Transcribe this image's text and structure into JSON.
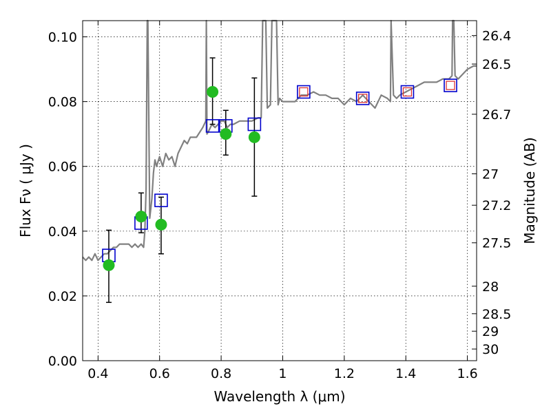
{
  "chart_data": {
    "type": "scatter",
    "xlabel": "Wavelength  λ (μm)",
    "ylabel": "Flux  Fν  ( μJy )",
    "ylabel_right": "Magnitude (AB)",
    "xlim": [
      0.35,
      1.63
    ],
    "ylim": [
      0.0,
      0.105
    ],
    "grid": true,
    "x_ticks": [
      0.4,
      0.6,
      0.8,
      1.0,
      1.2,
      1.4,
      1.6
    ],
    "x_tick_labels": [
      "0.4",
      "0.6",
      "0.8",
      "1",
      "1.2",
      "1.4",
      "1.6"
    ],
    "y_ticks": [
      0.0,
      0.02,
      0.04,
      0.06,
      0.08,
      0.1
    ],
    "y_tick_labels": [
      "0.00",
      "0.02",
      "0.04",
      "0.06",
      "0.08",
      "0.10"
    ],
    "right_ticks": [
      {
        "label": "26.4",
        "flux": 0.1004
      },
      {
        "label": "26.5",
        "flux": 0.0916
      },
      {
        "label": "26.7",
        "flux": 0.0761
      },
      {
        "label": "27",
        "flux": 0.0577
      },
      {
        "label": "27.2",
        "flux": 0.048
      },
      {
        "label": "27.5",
        "flux": 0.0364
      },
      {
        "label": "28",
        "flux": 0.023
      },
      {
        "label": "28.5",
        "flux": 0.0145
      },
      {
        "label": "29",
        "flux": 0.0091
      },
      {
        "label": "30",
        "flux": 0.0036
      }
    ],
    "colors": {
      "spectrum": "#808080",
      "observed": "#22bb22",
      "model_box": "#0000cc",
      "model_inner": "#dd3333",
      "errorbar": "#000000"
    },
    "series": [
      {
        "kind": "spectrum",
        "x": [
          0.35,
          0.36,
          0.37,
          0.38,
          0.39,
          0.4,
          0.41,
          0.42,
          0.43,
          0.44,
          0.45,
          0.46,
          0.47,
          0.48,
          0.49,
          0.5,
          0.51,
          0.52,
          0.53,
          0.54,
          0.548,
          0.552,
          0.556,
          0.56,
          0.562,
          0.568,
          0.575,
          0.58,
          0.585,
          0.59,
          0.6,
          0.61,
          0.62,
          0.63,
          0.64,
          0.65,
          0.66,
          0.67,
          0.68,
          0.69,
          0.7,
          0.72,
          0.74,
          0.75,
          0.752,
          0.754,
          0.76,
          0.77,
          0.78,
          0.79,
          0.8,
          0.81,
          0.82,
          0.83,
          0.84,
          0.86,
          0.88,
          0.9,
          0.92,
          0.93,
          0.935,
          0.945,
          0.95,
          0.96,
          0.965,
          0.98,
          0.985,
          0.99,
          1.0,
          1.02,
          1.04,
          1.06,
          1.08,
          1.1,
          1.12,
          1.14,
          1.16,
          1.18,
          1.2,
          1.22,
          1.24,
          1.26,
          1.28,
          1.3,
          1.32,
          1.34,
          1.35,
          1.352,
          1.36,
          1.37,
          1.38,
          1.4,
          1.42,
          1.44,
          1.46,
          1.48,
          1.5,
          1.52,
          1.54,
          1.55,
          1.552,
          1.556,
          1.56,
          1.57,
          1.58,
          1.6,
          1.62,
          1.63
        ],
        "y": [
          0.032,
          0.031,
          0.032,
          0.031,
          0.033,
          0.031,
          0.032,
          0.033,
          0.033,
          0.034,
          0.035,
          0.035,
          0.036,
          0.036,
          0.036,
          0.036,
          0.035,
          0.036,
          0.035,
          0.036,
          0.035,
          0.04,
          0.053,
          0.105,
          0.105,
          0.044,
          0.05,
          0.058,
          0.062,
          0.06,
          0.063,
          0.06,
          0.064,
          0.062,
          0.063,
          0.06,
          0.064,
          0.066,
          0.068,
          0.067,
          0.069,
          0.069,
          0.072,
          0.074,
          0.105,
          0.07,
          0.071,
          0.073,
          0.072,
          0.073,
          0.074,
          0.074,
          0.072,
          0.073,
          0.073,
          0.074,
          0.074,
          0.074,
          0.075,
          0.075,
          0.105,
          0.105,
          0.078,
          0.079,
          0.105,
          0.105,
          0.079,
          0.081,
          0.08,
          0.08,
          0.08,
          0.082,
          0.082,
          0.083,
          0.082,
          0.082,
          0.081,
          0.081,
          0.079,
          0.081,
          0.08,
          0.082,
          0.08,
          0.078,
          0.082,
          0.081,
          0.08,
          0.105,
          0.082,
          0.081,
          0.082,
          0.083,
          0.084,
          0.085,
          0.086,
          0.086,
          0.086,
          0.087,
          0.087,
          0.088,
          0.105,
          0.105,
          0.088,
          0.087,
          0.088,
          0.09,
          0.091,
          0.091
        ]
      },
      {
        "kind": "observed",
        "x": [
          0.435,
          0.54,
          0.605,
          0.772,
          0.815,
          0.908
        ],
        "y": [
          0.0295,
          0.0445,
          0.042,
          0.083,
          0.07,
          0.069
        ],
        "yerr_low": [
          0.018,
          0.0395,
          0.033,
          0.073,
          0.0635,
          0.0508
        ],
        "yerr_high": [
          0.0403,
          0.0518,
          0.0505,
          0.0935,
          0.0773,
          0.0873
        ]
      },
      {
        "kind": "model",
        "x": [
          0.435,
          0.54,
          0.605,
          0.772,
          0.815,
          0.908,
          1.068,
          1.26,
          1.405,
          1.545
        ],
        "y": [
          0.0325,
          0.0425,
          0.0495,
          0.0725,
          0.0725,
          0.073,
          0.083,
          0.081,
          0.083,
          0.085
        ],
        "inner": [
          false,
          false,
          false,
          false,
          false,
          false,
          true,
          true,
          true,
          true
        ]
      }
    ]
  }
}
